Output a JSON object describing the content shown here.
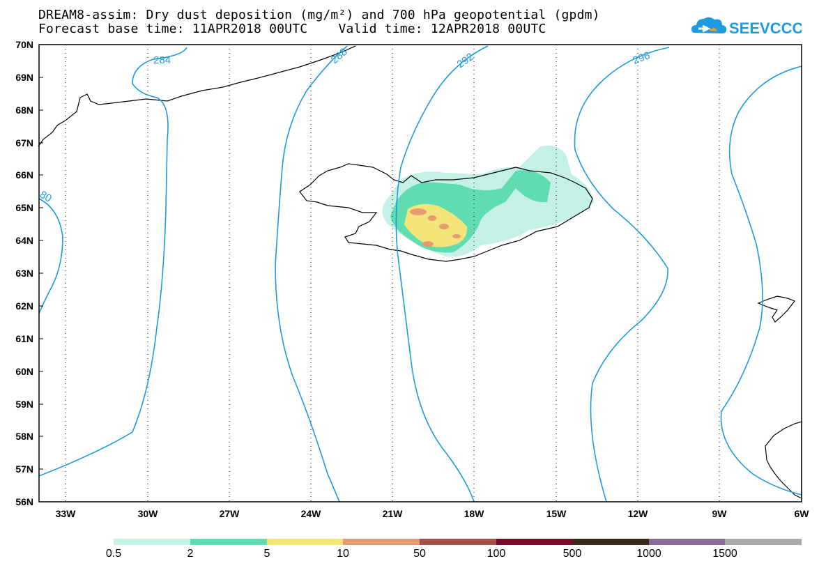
{
  "title": {
    "line1": "DREAM8-assim: Dry dust deposition (mg/m²) and 700 hPa geopotential (gpdm)",
    "line2": "Forecast base time: 11APR2018 00UTC    Valid time: 12APR2018 00UTC"
  },
  "logo": {
    "text": "SEEVCCC"
  },
  "lat_labels": [
    "70N",
    "69N",
    "68N",
    "67N",
    "66N",
    "65N",
    "64N",
    "63N",
    "62N",
    "61N",
    "60N",
    "59N",
    "58N",
    "57N",
    "56N"
  ],
  "lon_labels": [
    "33W",
    "30W",
    "27W",
    "24W",
    "21W",
    "18W",
    "15W",
    "12W",
    "9W",
    "6W"
  ],
  "contour_labels": [
    "284",
    "288",
    "292",
    "296",
    "80"
  ],
  "legend": {
    "labels": [
      "0.5",
      "2",
      "5",
      "10",
      "50",
      "100",
      "500",
      "1000",
      "1500"
    ],
    "colors": [
      "#c4f0e8",
      "#5fdcb0",
      "#f3e57a",
      "#e89a70",
      "#a65048",
      "#7a0a28",
      "#3a2818",
      "#8a6a9a",
      "#aaaaaa"
    ]
  },
  "colors": {
    "contour": "#1e9be0",
    "coast": "#000000",
    "frame": "#000000"
  }
}
